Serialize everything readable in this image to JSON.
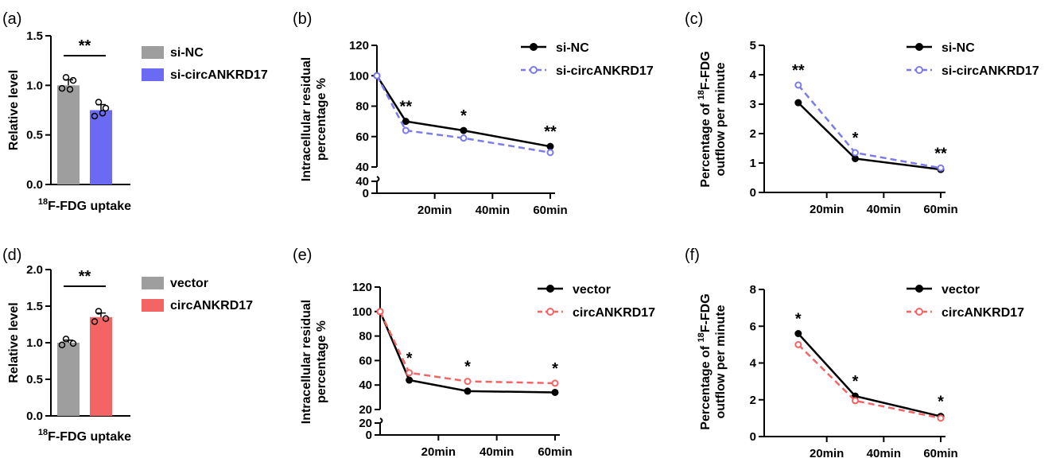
{
  "chart_data": [
    {
      "panel": "(a)",
      "type": "bar",
      "xlabel_pre": "18",
      "xlabel_post": "F-FDG uptake",
      "ylabel": "Relative level",
      "ylim": [
        0,
        1.5
      ],
      "yticks": [
        "0.0",
        "0.5",
        "1.0",
        "1.5"
      ],
      "series": [
        {
          "name": "si-NC",
          "color": "#9e9e9e",
          "value": 1.0,
          "points": [
            1.08,
            0.97,
            1.05,
            0.96
          ]
        },
        {
          "name": "si-circANKRD17",
          "color": "#6a6af2",
          "value": 0.75,
          "points": [
            0.83,
            0.69,
            0.77,
            0.72
          ]
        }
      ],
      "significance": "**"
    },
    {
      "panel": "(b)",
      "type": "line",
      "ylabel": [
        "Intracellular residual",
        "percentage %"
      ],
      "ylim": [
        0,
        120
      ],
      "axis_break": [
        40,
        40
      ],
      "yticks_upper": [
        "40",
        "60",
        "80",
        "100",
        "120"
      ],
      "yticks_lower": [
        "0",
        "40"
      ],
      "x_categories": [
        "20min",
        "40min",
        "60min"
      ],
      "series": [
        {
          "name": "si-NC",
          "color": "#000000",
          "dashed": false,
          "x": [
            0,
            10,
            30,
            60
          ],
          "y": [
            100,
            70,
            64,
            53.5
          ]
        },
        {
          "name": "si-circANKRD17",
          "color": "#7b7bea",
          "dashed": true,
          "x": [
            0,
            10,
            30,
            60
          ],
          "y": [
            100,
            64,
            59,
            49.5
          ]
        }
      ],
      "annotations": [
        {
          "x": 10,
          "text": "**"
        },
        {
          "x": 30,
          "text": "*"
        },
        {
          "x": 60,
          "text": "**"
        }
      ]
    },
    {
      "panel": "(c)",
      "type": "line",
      "ylabel_line1": "Percentage of ",
      "ylabel_sup": "18",
      "ylabel_line1_post": "F-FDG",
      "ylabel_line2": "outflow per minute",
      "ylim": [
        0,
        5
      ],
      "yticks": [
        "0",
        "1",
        "2",
        "3",
        "4",
        "5"
      ],
      "x_categories": [
        "20min",
        "40min",
        "60min"
      ],
      "series": [
        {
          "name": "si-NC",
          "color": "#000000",
          "dashed": false,
          "x": [
            10,
            30,
            60
          ],
          "y": [
            3.05,
            1.15,
            0.78
          ]
        },
        {
          "name": "si-circANKRD17",
          "color": "#7b7bea",
          "dashed": true,
          "x": [
            10,
            30,
            60
          ],
          "y": [
            3.65,
            1.35,
            0.83
          ]
        }
      ],
      "annotations": [
        {
          "x": 10,
          "text": "**"
        },
        {
          "x": 30,
          "text": "*"
        },
        {
          "x": 60,
          "text": "**"
        }
      ]
    },
    {
      "panel": "(d)",
      "type": "bar",
      "xlabel_pre": "18",
      "xlabel_post": "F-FDG uptake",
      "ylabel": "Relative level",
      "ylim": [
        0,
        2.0
      ],
      "yticks": [
        "0.0",
        "0.5",
        "1.0",
        "1.5",
        "2.0"
      ],
      "series": [
        {
          "name": "vector",
          "color": "#9e9e9e",
          "value": 1.0,
          "points": [
            1.05,
            0.97,
            0.99
          ]
        },
        {
          "name": "circANKRD17",
          "color": "#f46464",
          "value": 1.35,
          "points": [
            1.43,
            1.29,
            1.33
          ]
        }
      ],
      "significance": "**"
    },
    {
      "panel": "(e)",
      "type": "line",
      "ylabel": [
        "Intracellular residual",
        "percentage %"
      ],
      "ylim": [
        0,
        120
      ],
      "axis_break": [
        20,
        20
      ],
      "yticks_upper": [
        "20",
        "40",
        "60",
        "80",
        "100",
        "120"
      ],
      "yticks_lower": [
        "0",
        "20"
      ],
      "x_categories": [
        "20min",
        "40min",
        "60min"
      ],
      "series": [
        {
          "name": "vector",
          "color": "#000000",
          "dashed": false,
          "x": [
            0,
            10,
            30,
            60
          ],
          "y": [
            100,
            44,
            35,
            34
          ]
        },
        {
          "name": "circANKRD17",
          "color": "#f46464",
          "dashed": true,
          "x": [
            0,
            10,
            30,
            60
          ],
          "y": [
            100,
            50,
            43,
            41.5
          ]
        }
      ],
      "annotations": [
        {
          "x": 10,
          "text": "*"
        },
        {
          "x": 30,
          "text": "*"
        },
        {
          "x": 60,
          "text": "*"
        }
      ]
    },
    {
      "panel": "(f)",
      "type": "line",
      "ylabel_line1": "Percentage of ",
      "ylabel_sup": "18",
      "ylabel_line1_post": "F-FDG",
      "ylabel_line2": "outflow per minute",
      "ylim": [
        0,
        8
      ],
      "yticks": [
        "0",
        "2",
        "4",
        "6",
        "8"
      ],
      "x_categories": [
        "20min",
        "40min",
        "60min"
      ],
      "series": [
        {
          "name": "vector",
          "color": "#000000",
          "dashed": false,
          "x": [
            10,
            30,
            60
          ],
          "y": [
            5.6,
            2.2,
            1.1
          ]
        },
        {
          "name": "circANKRD17",
          "color": "#f46464",
          "dashed": true,
          "x": [
            10,
            30,
            60
          ],
          "y": [
            5.0,
            1.95,
            1.0
          ]
        }
      ],
      "annotations": [
        {
          "x": 10,
          "text": "*"
        },
        {
          "x": 30,
          "text": "*"
        },
        {
          "x": 60,
          "text": "*"
        }
      ]
    }
  ]
}
